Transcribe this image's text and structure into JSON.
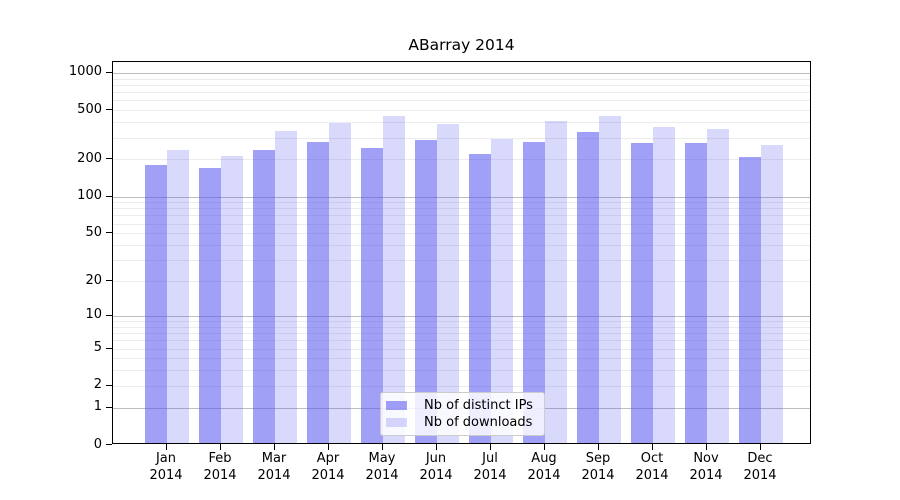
{
  "title": "ABarray 2014",
  "chart_data": {
    "type": "bar",
    "title": "ABarray 2014",
    "x_categories": [
      "Jan 2014",
      "Feb 2014",
      "Mar 2014",
      "Apr 2014",
      "May 2014",
      "Jun 2014",
      "Jul 2014",
      "Aug 2014",
      "Sep 2014",
      "Oct 2014",
      "Nov 2014",
      "Dec 2014"
    ],
    "series": [
      {
        "name": "Nb of distinct IPs",
        "color": "rgba(82,82,238,0.55)",
        "values": [
          175,
          165,
          230,
          265,
          240,
          275,
          215,
          265,
          320,
          260,
          260,
          200
        ]
      },
      {
        "name": "Nb of downloads",
        "color": "rgba(82,82,238,0.22)",
        "values": [
          230,
          205,
          330,
          380,
          435,
          370,
          280,
          395,
          430,
          350,
          340,
          250
        ]
      }
    ],
    "xlabel": "",
    "ylabel": "",
    "y_scale": "log10(1+x)",
    "y_ticks": [
      0,
      1,
      2,
      5,
      10,
      20,
      50,
      100,
      200,
      500,
      1000
    ],
    "y_major_grid": [
      1,
      10,
      100,
      1000
    ],
    "y_minor_grid": [
      2,
      3,
      4,
      5,
      6,
      7,
      8,
      9,
      20,
      30,
      40,
      50,
      60,
      70,
      80,
      90,
      200,
      300,
      400,
      500,
      600,
      700,
      800,
      900
    ],
    "ylim": [
      0,
      1224
    ],
    "grid": true,
    "legend_position": "lower center inside"
  },
  "legend": {
    "items": [
      {
        "label": "Nb of distinct IPs"
      },
      {
        "label": "Nb of downloads"
      }
    ]
  },
  "colors": {
    "bar_distinct_ips": "rgba(82,82,238,0.55)",
    "bar_downloads": "rgba(82,82,238,0.22)",
    "major_grid": "#bdbdbd",
    "minor_grid": "#ececec",
    "spine": "#000000",
    "background": "#ffffff"
  }
}
